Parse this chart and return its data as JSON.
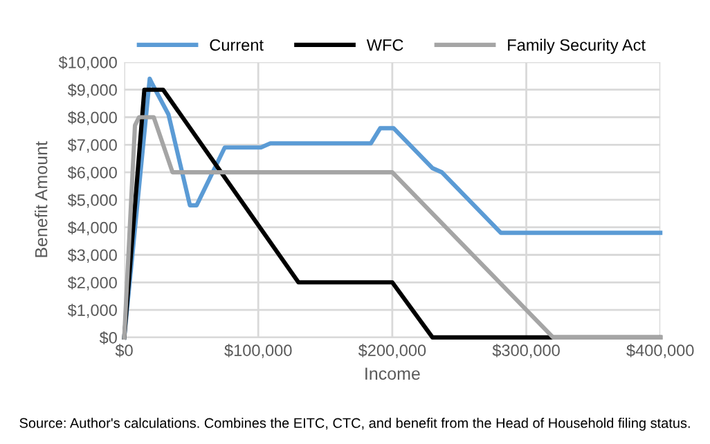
{
  "chart_data": {
    "type": "line",
    "xlabel": "Income",
    "ylabel": "Benefit Amount",
    "series": [
      {
        "name": "Current",
        "color": "#5b9bd5",
        "x": [
          0,
          19000,
          21000,
          33000,
          49000,
          54000,
          75000,
          102000,
          109000,
          184000,
          191000,
          201000,
          230000,
          237000,
          281000,
          400000
        ],
        "values": [
          0,
          9400,
          9200,
          8100,
          4800,
          4800,
          6900,
          6900,
          7050,
          7050,
          7600,
          7600,
          6150,
          6000,
          3800,
          3800
        ]
      },
      {
        "name": "WFC",
        "color": "#000000",
        "x": [
          0,
          15000,
          29000,
          130000,
          200000,
          230000,
          400000
        ],
        "values": [
          0,
          9000,
          9000,
          2000,
          2000,
          0,
          0
        ]
      },
      {
        "name": "Family Security Act",
        "color": "#a5a5a5",
        "x": [
          0,
          8000,
          11000,
          22000,
          36000,
          200000,
          320000,
          400000
        ],
        "values": [
          0,
          7700,
          8000,
          8000,
          6000,
          6000,
          0,
          0
        ]
      }
    ],
    "xlim": [
      0,
      400000
    ],
    "xticks": [
      {
        "value": 0,
        "label": "$0"
      },
      {
        "value": 100000,
        "label": "$100,000"
      },
      {
        "value": 200000,
        "label": "$200,000"
      },
      {
        "value": 300000,
        "label": "$300,000"
      },
      {
        "value": 400000,
        "label": "$400,000"
      }
    ],
    "ylim": [
      0,
      10000
    ],
    "yticks": [
      {
        "value": 0,
        "label": "$0"
      },
      {
        "value": 1000,
        "label": "$1,000"
      },
      {
        "value": 2000,
        "label": "$2,000"
      },
      {
        "value": 3000,
        "label": "$3,000"
      },
      {
        "value": 4000,
        "label": "$4,000"
      },
      {
        "value": 5000,
        "label": "$5,000"
      },
      {
        "value": 6000,
        "label": "$6,000"
      },
      {
        "value": 7000,
        "label": "$7,000"
      },
      {
        "value": 8000,
        "label": "$8,000"
      },
      {
        "value": 9000,
        "label": "$9,000"
      },
      {
        "value": 10000,
        "label": "$10,000"
      }
    ],
    "grid": true,
    "legend": "top",
    "marker": "none",
    "line_style": "solid",
    "annotations": [
      "Source: Author's calculations. Combines the EITC, CTC, and benefit from the Head of Household filing status."
    ]
  }
}
